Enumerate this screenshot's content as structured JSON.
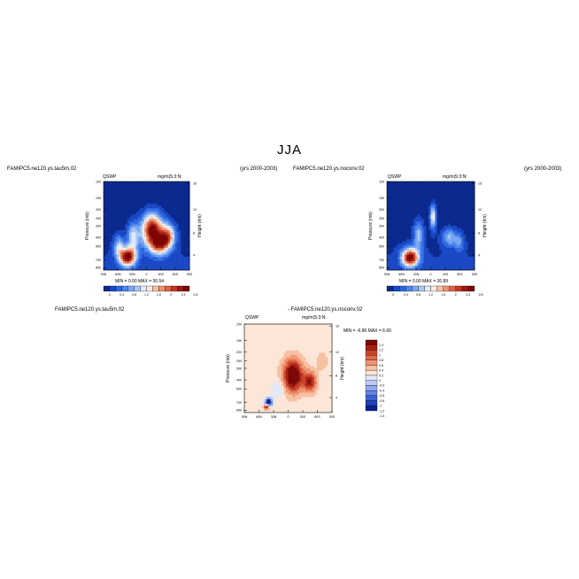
{
  "figure": {
    "title": "JJA",
    "colors": {
      "seq": [
        "#0b2a8f",
        "#1b48c4",
        "#2f67e0",
        "#4d86ee",
        "#78a6f2",
        "#a8c8f6",
        "#dfe9f7",
        "#fbe8dc",
        "#f4c1a3",
        "#ec9270",
        "#dc6446",
        "#c23a22",
        "#9e1a10",
        "#7e0505"
      ],
      "div": [
        "#0b1e8c",
        "#1e3fb8",
        "#3d5fd4",
        "#6582e6",
        "#93a8ee",
        "#bccbf5",
        "#e2e8f8",
        "#fce6d8",
        "#f6c0a2",
        "#ee9676",
        "#df6b4b",
        "#c9432a",
        "#a72214",
        "#7d0808"
      ]
    }
  },
  "chart_data": [
    {
      "type": "heatmap",
      "case_name": "FAMIPC5.ne120.ys.tau5m.02",
      "years": "(yrs 2000-2003)",
      "variable": "QSWP",
      "units": "mg/m|S:3:N:",
      "ylabel": "Pressure (mb)",
      "y2label": "Height (km)",
      "x_ticks": [
        "90N",
        "60N",
        "30N",
        "0",
        "30S",
        "60S",
        "90S"
      ],
      "y_ticks": [
        "100",
        "150",
        "200",
        "250",
        "300",
        "400",
        "500",
        "700",
        "850"
      ],
      "height_ticks": [
        "16",
        "12",
        "8",
        "4"
      ],
      "colorbar_labels": [
        "0",
        "0.4",
        "0.8",
        "1.2",
        "1.6",
        "2",
        "2.4",
        "2.8"
      ],
      "stats": "MIN =    0.00    MAX =   30.54",
      "blobs": [
        {
          "lat": -12,
          "p": 330,
          "w": 22,
          "h": 0.4,
          "v": 2.6
        },
        {
          "lat": -45,
          "p": 380,
          "w": 15,
          "h": 0.28,
          "v": 1.7
        },
        {
          "lat": -28,
          "p": 480,
          "w": 20,
          "h": 0.25,
          "v": 1.8
        },
        {
          "lat": 40,
          "p": 650,
          "w": 17,
          "h": 0.22,
          "v": 2.7
        },
        {
          "lat": 28,
          "p": 400,
          "w": 12,
          "h": 0.35,
          "v": 1.2
        },
        {
          "lat": 58,
          "p": 500,
          "w": 10,
          "h": 0.25,
          "v": 1.0
        }
      ]
    },
    {
      "type": "heatmap",
      "case_name": "FAMIPC5.ne120.ys.noconv.02",
      "years": "(yrs 2000-2003)",
      "variable": "QSWP",
      "units": "mg/m|S:3:N:",
      "ylabel": "Pressure (mb)",
      "y2label": "Height (km)",
      "x_ticks": [
        "90N",
        "60N",
        "30N",
        "0",
        "30S",
        "60S",
        "90S"
      ],
      "y_ticks": [
        "100",
        "150",
        "200",
        "250",
        "300",
        "400",
        "500",
        "700",
        "850"
      ],
      "height_ticks": [
        "16",
        "12",
        "8",
        "4"
      ],
      "colorbar_labels": [
        "0",
        "0.4",
        "0.8",
        "1.2",
        "1.6",
        "2",
        "2.4",
        "2.8"
      ],
      "stats": "MIN =    0.00    MAX =   26.89",
      "blobs": [
        {
          "lat": 42,
          "p": 660,
          "w": 17,
          "h": 0.22,
          "v": 2.7
        },
        {
          "lat": -5,
          "p": 240,
          "w": 6,
          "h": 0.3,
          "v": 1.5
        },
        {
          "lat": -38,
          "p": 400,
          "w": 14,
          "h": 0.22,
          "v": 0.9
        },
        {
          "lat": 25,
          "p": 380,
          "w": 10,
          "h": 0.35,
          "v": 1.0
        },
        {
          "lat": -58,
          "p": 450,
          "w": 10,
          "h": 0.22,
          "v": 0.7
        }
      ]
    },
    {
      "type": "heatmap",
      "case_name": "FAMIPC5.ne120.ys.tau5m.02",
      "diff_label": "- FAMIPC5.ne120.ys.noconv.02",
      "variable": "QSWP",
      "units": "mg/m|S:3:N:",
      "ylabel": "Pressure (mb)",
      "y2label": "Height (km)",
      "x_ticks": [
        "90N",
        "60N",
        "30N",
        "0",
        "30S",
        "60S",
        "90S"
      ],
      "y_ticks": [
        "100",
        "150",
        "200",
        "250",
        "300",
        "400",
        "500",
        "700",
        "850"
      ],
      "height_ticks": [
        "16",
        "12",
        "8",
        "4"
      ],
      "colorbar_labels": [
        "1.4",
        "1.2",
        "1",
        "0.8",
        "0.6",
        "0.4",
        "0.2",
        "0",
        "-0.2",
        "-0.4",
        "-0.6",
        "-0.8",
        "-1",
        "-1.2",
        "-1.4"
      ],
      "stats": "MIN =   -6.86    MAX =    6.60",
      "blobs": [
        {
          "lat": -10,
          "p": 360,
          "w": 20,
          "h": 0.4,
          "v": 1.6
        },
        {
          "lat": -45,
          "p": 420,
          "w": 13,
          "h": 0.25,
          "v": 1.1
        },
        {
          "lat": 40,
          "p": 700,
          "w": 7,
          "h": 0.1,
          "v": -1.8
        },
        {
          "lat": 44,
          "p": 780,
          "w": 6,
          "h": 0.07,
          "v": 1.3
        },
        {
          "lat": -70,
          "p": 250,
          "w": 12,
          "h": 0.25,
          "v": 0.25
        },
        {
          "lat": 20,
          "p": 500,
          "w": 12,
          "h": 0.2,
          "v": -0.35
        }
      ]
    }
  ]
}
